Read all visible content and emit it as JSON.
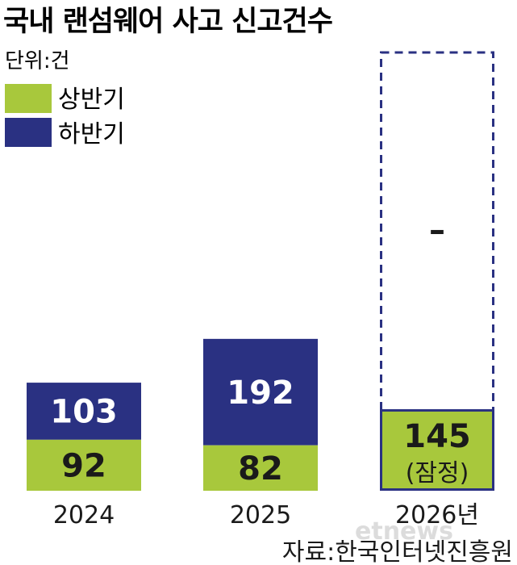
{
  "chart_data": {
    "type": "bar",
    "stacked": true,
    "title": "국내 랜섬웨어 사고 신고건수",
    "unit": "단위:건",
    "categories": [
      "2024",
      "2025",
      "2026년"
    ],
    "series": [
      {
        "name": "상반기",
        "values": [
          92,
          82,
          145
        ],
        "color": "#a8c83c"
      },
      {
        "name": "하반기",
        "values": [
          103,
          192,
          null
        ],
        "color": "#2a3182"
      }
    ],
    "notes": [
      "",
      "",
      "(잠정)"
    ],
    "missing_label": "–",
    "legend_position": "top-left",
    "grid": false,
    "source": "자료:한국인터넷진흥원"
  },
  "watermark": "etnews"
}
